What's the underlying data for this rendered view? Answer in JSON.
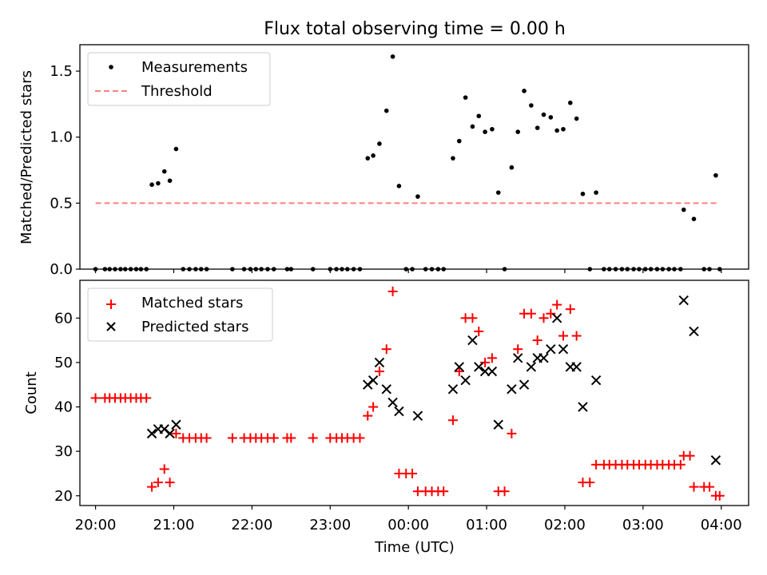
{
  "chart_data": [
    {
      "type": "scatter",
      "title": "Flux total observing time = 0.00 h",
      "xlabel": "",
      "ylabel": "Matched/Predicted stars",
      "ylim": [
        0,
        1.7
      ],
      "xlim": [
        -0.2,
        8.35
      ],
      "yticks": [
        0.0,
        0.5,
        1.0,
        1.5
      ],
      "ytick_labels": [
        "0.0",
        "0.5",
        "1.0",
        "1.5"
      ],
      "legend_placement": "upper-left",
      "grid": false,
      "series": [
        {
          "name": "Measurements",
          "color": "#000000",
          "marker": "dot",
          "points": [
            [
              0.0,
              0
            ],
            [
              0.12,
              0
            ],
            [
              0.18,
              0
            ],
            [
              0.25,
              0
            ],
            [
              0.32,
              0
            ],
            [
              0.38,
              0
            ],
            [
              0.45,
              0
            ],
            [
              0.52,
              0
            ],
            [
              0.58,
              0
            ],
            [
              0.65,
              0
            ],
            [
              0.72,
              0.64
            ],
            [
              0.8,
              0.65
            ],
            [
              0.88,
              0.74
            ],
            [
              0.95,
              0.67
            ],
            [
              1.03,
              0.91
            ],
            [
              1.12,
              0
            ],
            [
              1.2,
              0
            ],
            [
              1.28,
              0
            ],
            [
              1.35,
              0
            ],
            [
              1.42,
              0
            ],
            [
              1.75,
              0
            ],
            [
              1.9,
              0
            ],
            [
              1.98,
              0
            ],
            [
              2.05,
              0
            ],
            [
              2.12,
              0
            ],
            [
              2.2,
              0
            ],
            [
              2.28,
              0
            ],
            [
              2.45,
              0
            ],
            [
              2.5,
              0
            ],
            [
              2.78,
              0
            ],
            [
              3.0,
              0
            ],
            [
              3.08,
              0
            ],
            [
              3.15,
              0
            ],
            [
              3.22,
              0
            ],
            [
              3.3,
              0
            ],
            [
              3.38,
              0
            ],
            [
              3.48,
              0.84
            ],
            [
              3.55,
              0.86
            ],
            [
              3.63,
              0.95
            ],
            [
              3.72,
              1.2
            ],
            [
              3.8,
              1.61
            ],
            [
              3.88,
              0.63
            ],
            [
              3.97,
              0
            ],
            [
              4.05,
              0
            ],
            [
              4.12,
              0.55
            ],
            [
              4.22,
              0
            ],
            [
              4.3,
              0
            ],
            [
              4.38,
              0
            ],
            [
              4.45,
              0
            ],
            [
              4.57,
              0.84
            ],
            [
              4.65,
              0.97
            ],
            [
              4.73,
              1.3
            ],
            [
              4.82,
              1.08
            ],
            [
              4.9,
              1.16
            ],
            [
              4.98,
              1.04
            ],
            [
              5.07,
              1.06
            ],
            [
              5.15,
              0.58
            ],
            [
              5.23,
              0
            ],
            [
              5.32,
              0.77
            ],
            [
              5.4,
              1.04
            ],
            [
              5.48,
              1.35
            ],
            [
              5.57,
              1.24
            ],
            [
              5.65,
              1.07
            ],
            [
              5.73,
              1.17
            ],
            [
              5.82,
              1.15
            ],
            [
              5.9,
              1.05
            ],
            [
              5.98,
              1.06
            ],
            [
              6.07,
              1.26
            ],
            [
              6.15,
              1.14
            ],
            [
              6.23,
              0.57
            ],
            [
              6.32,
              0
            ],
            [
              6.4,
              0.58
            ],
            [
              6.5,
              0
            ],
            [
              6.57,
              0
            ],
            [
              6.65,
              0
            ],
            [
              6.73,
              0
            ],
            [
              6.8,
              0
            ],
            [
              6.88,
              0
            ],
            [
              6.95,
              0
            ],
            [
              7.03,
              0
            ],
            [
              7.1,
              0
            ],
            [
              7.18,
              0
            ],
            [
              7.25,
              0
            ],
            [
              7.33,
              0
            ],
            [
              7.4,
              0
            ],
            [
              7.48,
              0
            ],
            [
              7.52,
              0.45
            ],
            [
              7.65,
              0.38
            ],
            [
              7.78,
              0
            ],
            [
              7.85,
              0
            ],
            [
              7.93,
              0.71
            ],
            [
              7.98,
              0
            ]
          ]
        },
        {
          "name": "Threshold",
          "color": "#ff8080",
          "marker": "dashed-line",
          "points": [
            [
              0.0,
              0.5
            ],
            [
              7.97,
              0.5
            ]
          ]
        }
      ]
    },
    {
      "type": "scatter",
      "title": "",
      "xlabel": "Time (UTC)",
      "ylabel": "Count",
      "ylim": [
        17.8,
        68.5
      ],
      "xlim": [
        -0.2,
        8.35
      ],
      "yticks": [
        20,
        30,
        40,
        50,
        60
      ],
      "ytick_labels": [
        "20",
        "30",
        "40",
        "50",
        "60"
      ],
      "xticks": [
        0,
        1,
        2,
        3,
        4,
        5,
        6,
        7,
        8
      ],
      "xtick_labels": [
        "20:00",
        "21:00",
        "22:00",
        "23:00",
        "00:00",
        "01:00",
        "02:00",
        "03:00",
        "04:00"
      ],
      "legend_placement": "upper-left",
      "grid": false,
      "series": [
        {
          "name": "Matched stars",
          "color": "#ff0000",
          "marker": "plus",
          "points": [
            [
              0.0,
              42
            ],
            [
              0.12,
              42
            ],
            [
              0.18,
              42
            ],
            [
              0.25,
              42
            ],
            [
              0.32,
              42
            ],
            [
              0.38,
              42
            ],
            [
              0.45,
              42
            ],
            [
              0.52,
              42
            ],
            [
              0.58,
              42
            ],
            [
              0.65,
              42
            ],
            [
              0.72,
              22
            ],
            [
              0.8,
              23
            ],
            [
              0.88,
              26
            ],
            [
              0.95,
              23
            ],
            [
              1.03,
              34
            ],
            [
              1.12,
              33
            ],
            [
              1.2,
              33
            ],
            [
              1.28,
              33
            ],
            [
              1.35,
              33
            ],
            [
              1.42,
              33
            ],
            [
              1.75,
              33
            ],
            [
              1.9,
              33
            ],
            [
              1.98,
              33
            ],
            [
              2.05,
              33
            ],
            [
              2.12,
              33
            ],
            [
              2.2,
              33
            ],
            [
              2.28,
              33
            ],
            [
              2.45,
              33
            ],
            [
              2.5,
              33
            ],
            [
              2.78,
              33
            ],
            [
              3.0,
              33
            ],
            [
              3.08,
              33
            ],
            [
              3.15,
              33
            ],
            [
              3.22,
              33
            ],
            [
              3.3,
              33
            ],
            [
              3.38,
              33
            ],
            [
              3.48,
              38
            ],
            [
              3.55,
              40
            ],
            [
              3.63,
              48
            ],
            [
              3.72,
              53
            ],
            [
              3.8,
              66
            ],
            [
              3.88,
              25
            ],
            [
              3.97,
              25
            ],
            [
              4.05,
              25
            ],
            [
              4.12,
              21
            ],
            [
              4.22,
              21
            ],
            [
              4.3,
              21
            ],
            [
              4.38,
              21
            ],
            [
              4.45,
              21
            ],
            [
              4.57,
              37
            ],
            [
              4.65,
              48
            ],
            [
              4.73,
              60
            ],
            [
              4.82,
              60
            ],
            [
              4.9,
              57
            ],
            [
              4.98,
              50
            ],
            [
              5.07,
              51
            ],
            [
              5.15,
              21
            ],
            [
              5.23,
              21
            ],
            [
              5.32,
              34
            ],
            [
              5.4,
              53
            ],
            [
              5.48,
              61
            ],
            [
              5.57,
              61
            ],
            [
              5.65,
              55
            ],
            [
              5.73,
              60
            ],
            [
              5.82,
              61
            ],
            [
              5.9,
              63
            ],
            [
              5.98,
              56
            ],
            [
              6.07,
              62
            ],
            [
              6.15,
              56
            ],
            [
              6.23,
              23
            ],
            [
              6.32,
              23
            ],
            [
              6.4,
              27
            ],
            [
              6.5,
              27
            ],
            [
              6.57,
              27
            ],
            [
              6.65,
              27
            ],
            [
              6.73,
              27
            ],
            [
              6.8,
              27
            ],
            [
              6.88,
              27
            ],
            [
              6.95,
              27
            ],
            [
              7.03,
              27
            ],
            [
              7.1,
              27
            ],
            [
              7.18,
              27
            ],
            [
              7.25,
              27
            ],
            [
              7.33,
              27
            ],
            [
              7.4,
              27
            ],
            [
              7.48,
              27
            ],
            [
              7.52,
              29
            ],
            [
              7.6,
              29
            ],
            [
              7.65,
              22
            ],
            [
              7.78,
              22
            ],
            [
              7.85,
              22
            ],
            [
              7.93,
              20
            ],
            [
              7.98,
              20
            ]
          ]
        },
        {
          "name": "Predicted stars",
          "color": "#000000",
          "marker": "cross",
          "points": [
            [
              0.72,
              34
            ],
            [
              0.8,
              35
            ],
            [
              0.88,
              35
            ],
            [
              0.95,
              34
            ],
            [
              1.03,
              36
            ],
            [
              3.48,
              45
            ],
            [
              3.55,
              46
            ],
            [
              3.63,
              50
            ],
            [
              3.72,
              44
            ],
            [
              3.8,
              41
            ],
            [
              3.88,
              39
            ],
            [
              4.12,
              38
            ],
            [
              4.57,
              44
            ],
            [
              4.65,
              49
            ],
            [
              4.73,
              46
            ],
            [
              4.82,
              55
            ],
            [
              4.9,
              49
            ],
            [
              4.98,
              48
            ],
            [
              5.07,
              48
            ],
            [
              5.15,
              36
            ],
            [
              5.32,
              44
            ],
            [
              5.4,
              51
            ],
            [
              5.48,
              45
            ],
            [
              5.57,
              49
            ],
            [
              5.65,
              51
            ],
            [
              5.73,
              51
            ],
            [
              5.82,
              53
            ],
            [
              5.9,
              60
            ],
            [
              5.98,
              53
            ],
            [
              6.07,
              49
            ],
            [
              6.15,
              49
            ],
            [
              6.23,
              40
            ],
            [
              6.4,
              46
            ],
            [
              7.52,
              64
            ],
            [
              7.65,
              57
            ],
            [
              7.93,
              28
            ]
          ]
        }
      ]
    }
  ]
}
